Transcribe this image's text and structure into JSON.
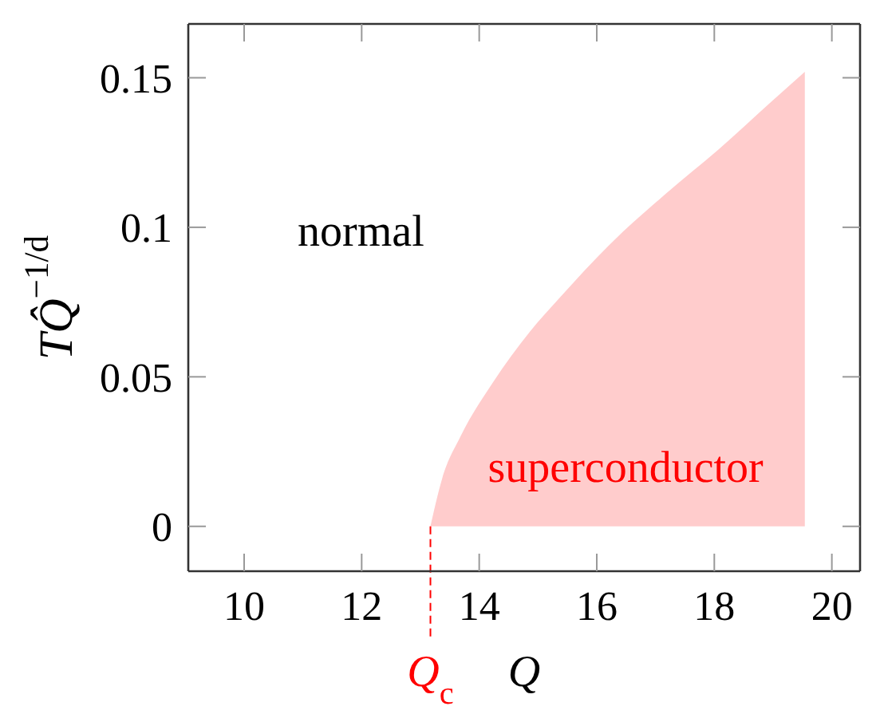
{
  "chart_data": {
    "type": "area",
    "xlabel": "Q",
    "ylabel": "TQ̂$^{−1/d}$",
    "x": [
      13.17,
      13.37,
      13.68,
      14.23,
      14.86,
      15.35,
      16.26,
      17.16,
      18.07,
      18.97,
      19.54
    ],
    "values": [
      0,
      0.016,
      0.03,
      0.048,
      0.065,
      0.076,
      0.095,
      0.111,
      0.126,
      0.142,
      0.152
    ],
    "color": "#ffcccc",
    "xlim": [
      9.05,
      20.48
    ],
    "xticks": [
      10,
      12,
      14,
      16,
      18,
      20
    ],
    "ylim": [
      -0.015,
      0.168
    ],
    "yticks": [
      0,
      0.05,
      0.1,
      0.15
    ],
    "ref_lines": [
      {
        "axis": "x",
        "value": 13.17,
        "label": "Q$_{c}$",
        "color": "#ff0000",
        "line_style": "dashed"
      }
    ],
    "annotations": [
      "normal",
      "superconductor"
    ]
  }
}
